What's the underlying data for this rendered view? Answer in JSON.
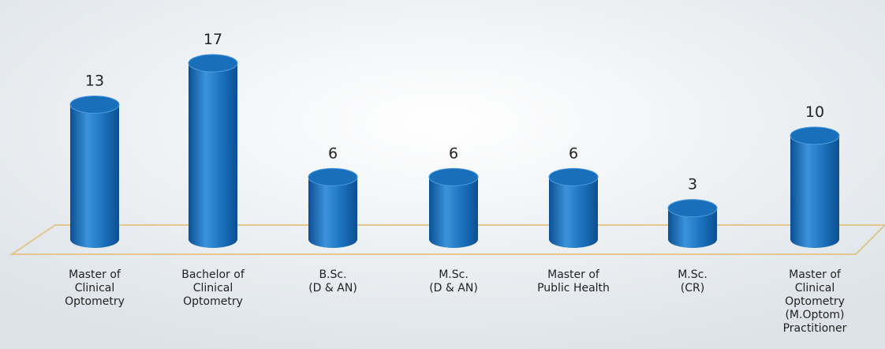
{
  "chart_data": {
    "type": "bar",
    "categories": [
      [
        "Master of",
        "Clinical",
        "Optometry"
      ],
      [
        "Bachelor of",
        "Clinical",
        "Optometry"
      ],
      [
        "B.Sc.",
        "(D & AN)"
      ],
      [
        "M.Sc.",
        "(D & AN)"
      ],
      [
        "Master of",
        "Public Health"
      ],
      [
        "M.Sc.",
        "(CR)"
      ],
      [
        "Master of",
        "Clinical",
        "Optometry",
        "(M.Optom)",
        "Practitioner"
      ]
    ],
    "values": [
      13,
      17,
      6,
      6,
      6,
      3,
      10
    ],
    "color": "#1a6fba"
  }
}
